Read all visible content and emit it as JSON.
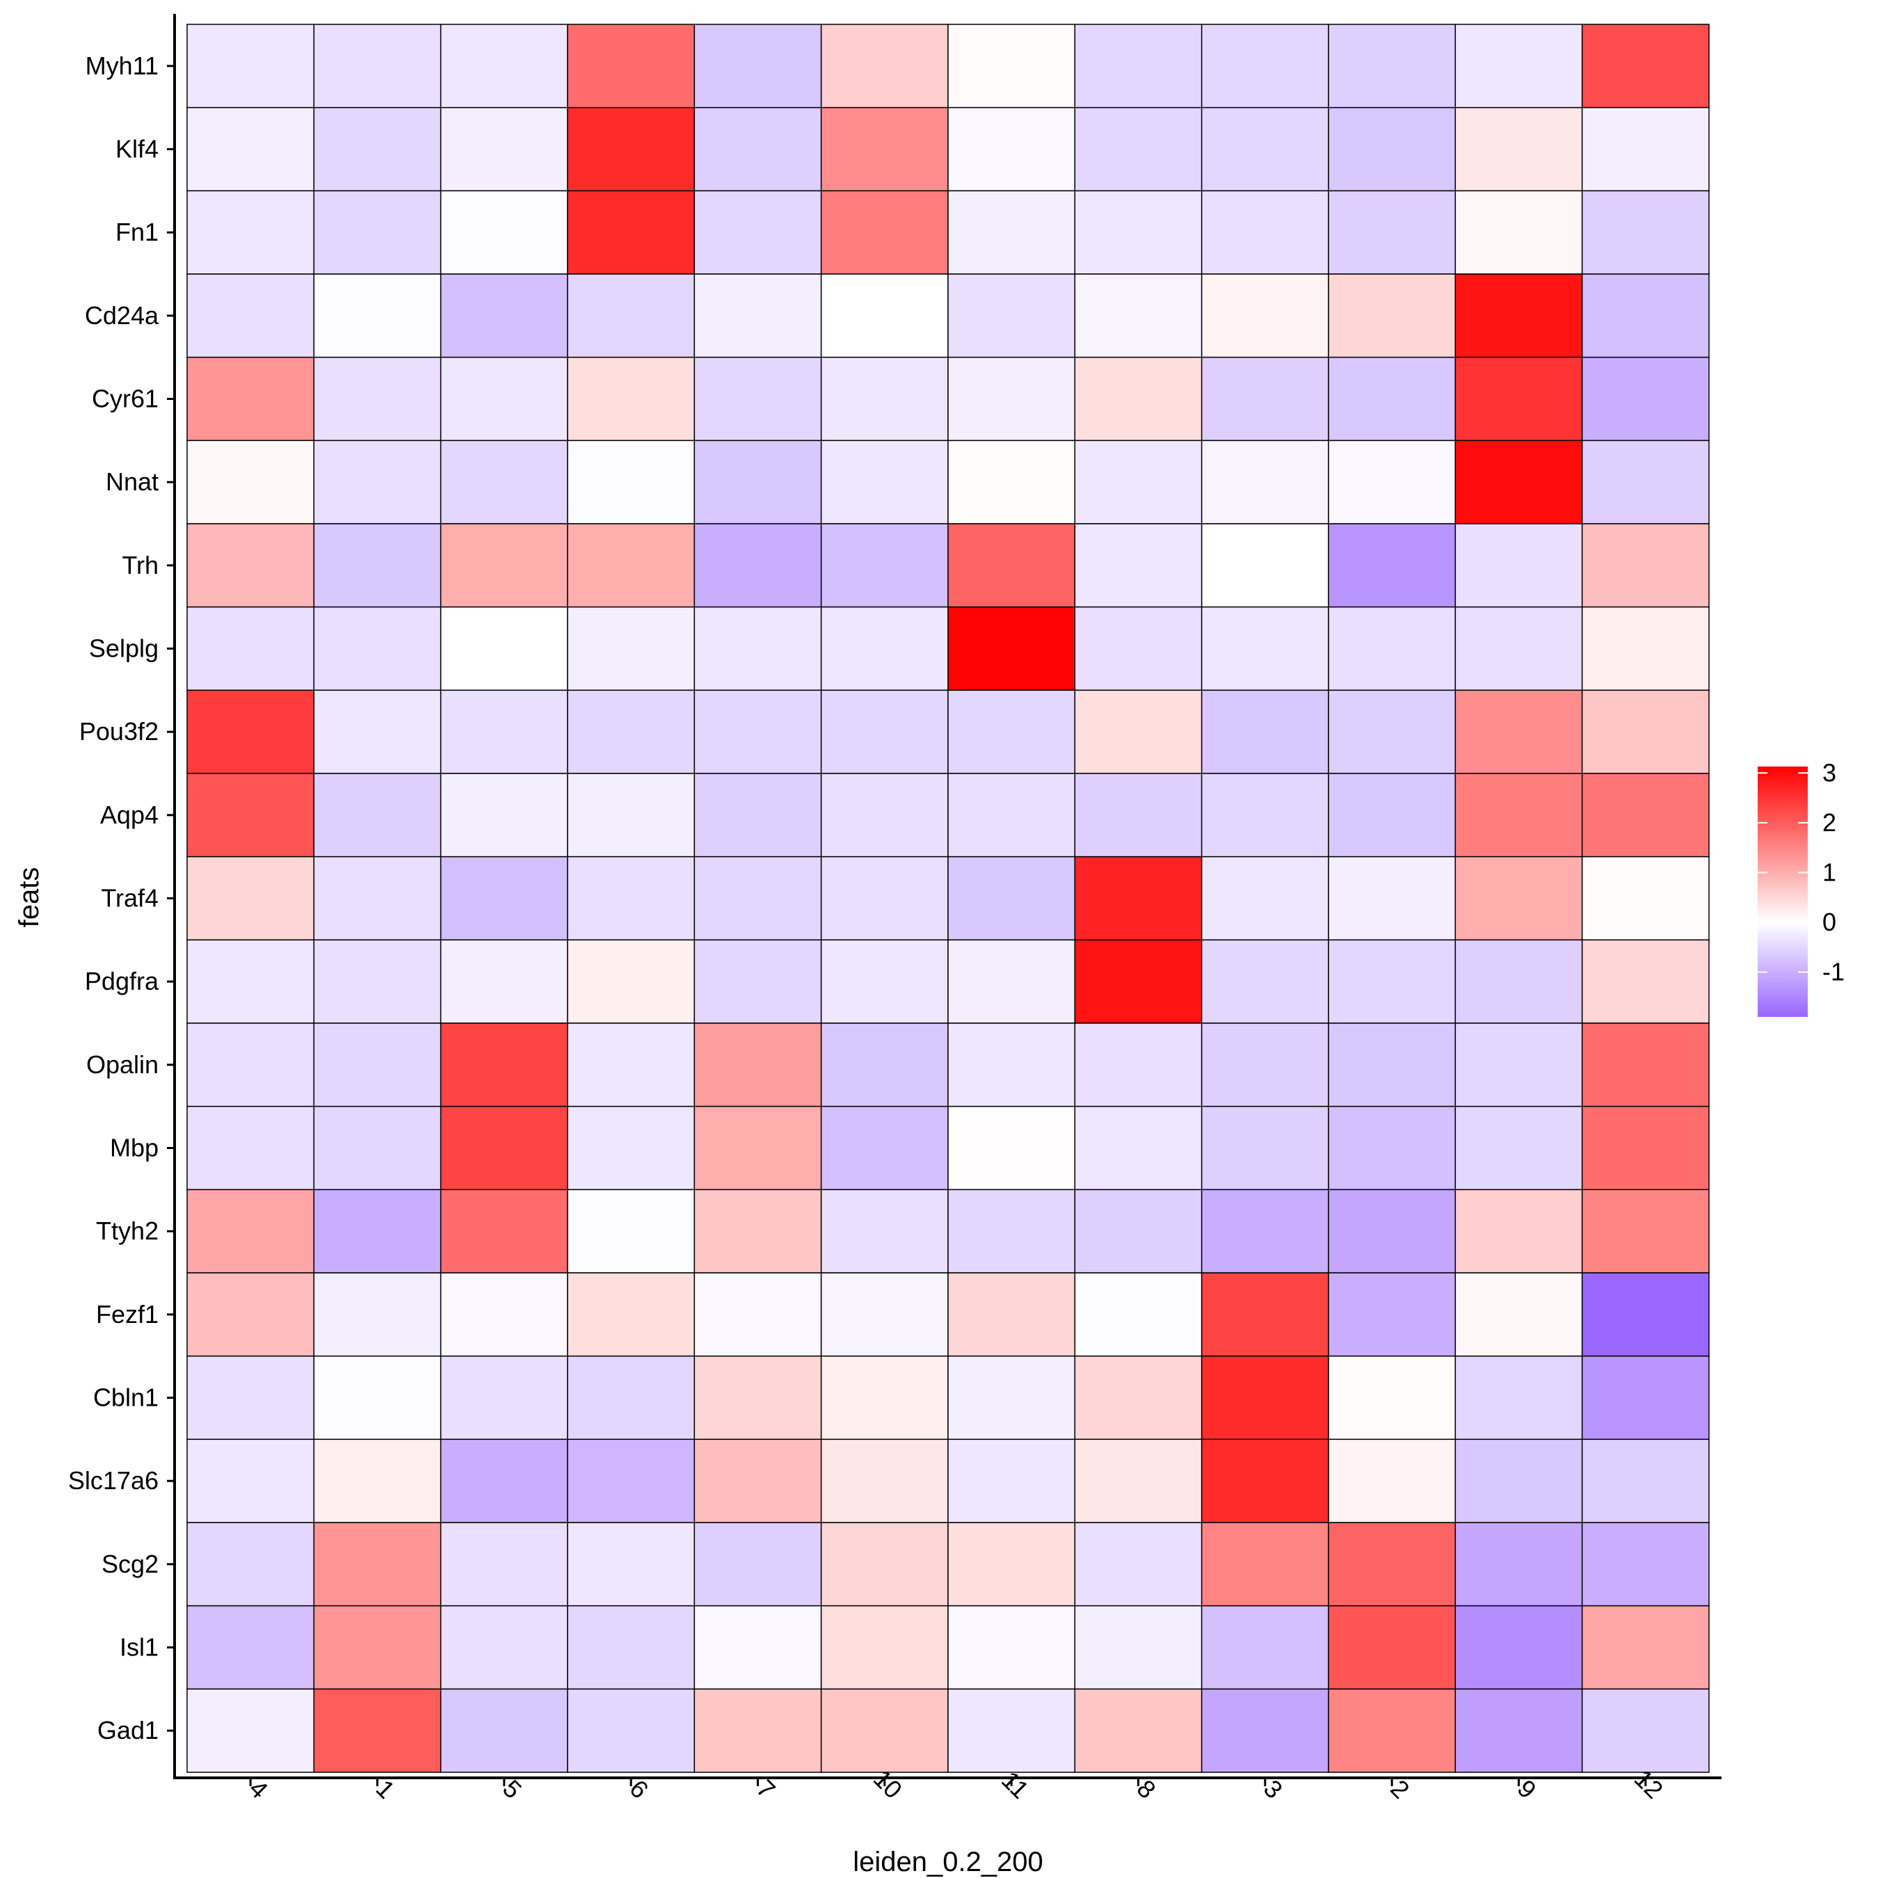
{
  "chart_data": {
    "type": "heatmap",
    "xlabel": "leiden_0.2_200",
    "ylabel": "feats",
    "x_categories": [
      "4",
      "1",
      "5",
      "6",
      "7",
      "10",
      "11",
      "8",
      "3",
      "2",
      "9",
      "12"
    ],
    "y_categories": [
      "Myh11",
      "Klf4",
      "Fn1",
      "Cd24a",
      "Cyr61",
      "Nnat",
      "Trh",
      "Selplg",
      "Pou3f2",
      "Aqp4",
      "Traf4",
      "Pdgfra",
      "Opalin",
      "Mbp",
      "Ttyh2",
      "Fezf1",
      "Cbln1",
      "Slc17a6",
      "Scg2",
      "Isl1",
      "Gad1"
    ],
    "values": [
      [
        -0.3,
        -0.4,
        -0.3,
        1.8,
        -0.7,
        0.6,
        0.05,
        -0.5,
        -0.5,
        -0.6,
        -0.3,
        2.2
      ],
      [
        -0.2,
        -0.5,
        -0.2,
        2.6,
        -0.6,
        1.4,
        -0.1,
        -0.5,
        -0.5,
        -0.7,
        0.3,
        -0.2
      ],
      [
        -0.3,
        -0.5,
        -0.05,
        2.6,
        -0.5,
        1.6,
        -0.2,
        -0.3,
        -0.4,
        -0.6,
        0.1,
        -0.6
      ],
      [
        -0.4,
        -0.05,
        -0.8,
        -0.5,
        -0.2,
        0,
        -0.4,
        -0.15,
        0.15,
        0.5,
        2.9,
        -0.8
      ],
      [
        1.3,
        -0.4,
        -0.3,
        0.4,
        -0.5,
        -0.3,
        -0.2,
        0.4,
        -0.6,
        -0.7,
        2.5,
        -1.0
      ],
      [
        0.1,
        -0.4,
        -0.5,
        -0.05,
        -0.7,
        -0.3,
        0.05,
        -0.3,
        -0.15,
        -0.1,
        3.0,
        -0.6
      ],
      [
        0.9,
        -0.7,
        1.0,
        1.0,
        -1.0,
        -0.8,
        1.9,
        -0.3,
        0,
        -1.3,
        -0.4,
        0.8
      ],
      [
        -0.4,
        -0.4,
        0,
        -0.2,
        -0.3,
        -0.3,
        3.1,
        -0.4,
        -0.3,
        -0.4,
        -0.4,
        0.2
      ],
      [
        2.4,
        -0.3,
        -0.4,
        -0.5,
        -0.5,
        -0.5,
        -0.5,
        0.4,
        -0.7,
        -0.6,
        1.4,
        0.7
      ],
      [
        2.1,
        -0.6,
        -0.2,
        -0.2,
        -0.6,
        -0.4,
        -0.4,
        -0.6,
        -0.5,
        -0.7,
        1.6,
        1.7
      ],
      [
        0.5,
        -0.4,
        -0.8,
        -0.4,
        -0.5,
        -0.4,
        -0.7,
        2.7,
        -0.3,
        -0.2,
        1.0,
        0.05
      ],
      [
        -0.3,
        -0.4,
        -0.2,
        0.2,
        -0.5,
        -0.3,
        -0.2,
        2.9,
        -0.5,
        -0.5,
        -0.6,
        0.5
      ],
      [
        -0.4,
        -0.5,
        2.3,
        -0.3,
        1.2,
        -0.7,
        -0.3,
        -0.4,
        -0.6,
        -0.7,
        -0.5,
        1.8
      ],
      [
        -0.4,
        -0.5,
        2.3,
        -0.3,
        1.0,
        -0.8,
        0.02,
        -0.3,
        -0.6,
        -0.8,
        -0.5,
        1.8
      ],
      [
        1.1,
        -1.0,
        1.8,
        -0.05,
        0.7,
        -0.4,
        -0.5,
        -0.6,
        -1.0,
        -1.1,
        0.6,
        1.5
      ],
      [
        0.8,
        -0.2,
        -0.1,
        0.4,
        -0.1,
        -0.15,
        0.5,
        -0.05,
        2.3,
        -1.0,
        0.1,
        -1.9
      ],
      [
        -0.4,
        -0.05,
        -0.4,
        -0.5,
        0.5,
        0.2,
        -0.2,
        0.5,
        2.6,
        0.05,
        -0.5,
        -1.3
      ],
      [
        -0.3,
        0.2,
        -1.0,
        -0.9,
        0.8,
        0.3,
        -0.3,
        0.3,
        2.6,
        0.15,
        -0.7,
        -0.6
      ],
      [
        -0.5,
        1.3,
        -0.4,
        -0.3,
        -0.6,
        0.5,
        0.4,
        -0.4,
        1.5,
        1.9,
        -1.1,
        -1.0
      ],
      [
        -0.8,
        1.3,
        -0.4,
        -0.5,
        -0.1,
        0.4,
        -0.1,
        -0.2,
        -0.8,
        2.1,
        -1.4,
        1.1
      ],
      [
        -0.2,
        2.0,
        -0.7,
        -0.5,
        0.7,
        0.7,
        -0.3,
        0.7,
        -1.1,
        1.5,
        -1.2,
        -0.6
      ]
    ],
    "color_scale": {
      "low": "#9966FF",
      "mid": "#FFFFFF",
      "high": "#FF0000",
      "range": [
        -1.9,
        3.13
      ]
    },
    "legend": {
      "ticks": [
        "3",
        "2",
        "1",
        "0",
        "-1"
      ],
      "placement": "right"
    }
  }
}
